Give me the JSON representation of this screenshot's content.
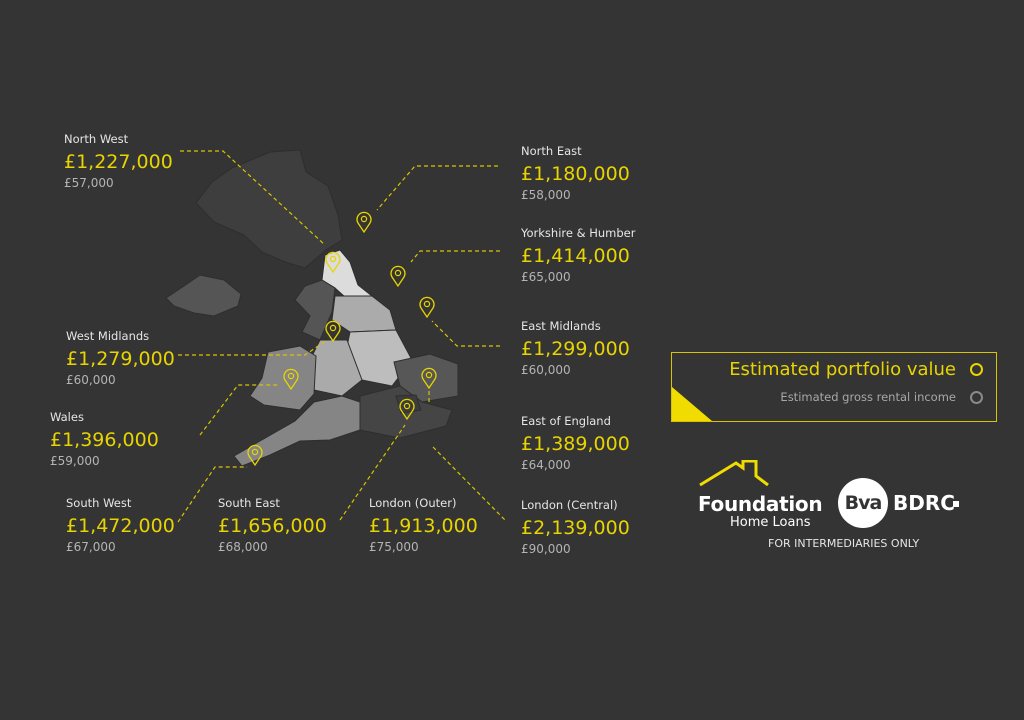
{
  "regions": [
    {
      "name": "North West",
      "value": "£1,227,000",
      "income": "£57,000"
    },
    {
      "name": "North East",
      "value": "£1,180,000",
      "income": "£58,000"
    },
    {
      "name": "Yorkshire & Humber",
      "value": "£1,414,000",
      "income": "£65,000"
    },
    {
      "name": "West Midlands",
      "value": "£1,279,000",
      "income": "£60,000"
    },
    {
      "name": "East Midlands",
      "value": "£1,299,000",
      "income": "£60,000"
    },
    {
      "name": "Wales",
      "value": "£1,396,000",
      "income": "£59,000"
    },
    {
      "name": "East of England",
      "value": "£1,389,000",
      "income": "£64,000"
    },
    {
      "name": "South West",
      "value": "£1,472,000",
      "income": "£67,000"
    },
    {
      "name": "South East",
      "value": "£1,656,000",
      "income": "£68,000"
    },
    {
      "name": "London (Outer)",
      "value": "£1,913,000",
      "income": "£75,000"
    },
    {
      "name": "London (Central)",
      "value": "£2,139,000",
      "income": "£90,000"
    }
  ],
  "legend": {
    "primary": "Estimated portfolio value",
    "secondary": "Estimated gross rental income"
  },
  "logos": {
    "foundation": "Foundation",
    "foundation_sub": "Home Loans",
    "bva": "Bva",
    "bdrc": "BDRC"
  },
  "disclaimer": "FOR INTERMEDIARIES ONLY",
  "colors": {
    "background": "#343434",
    "accent": "#e8d400"
  },
  "icons": [
    "map-pin-icon",
    "legend-circle-icon",
    "house-roof-icon"
  ]
}
